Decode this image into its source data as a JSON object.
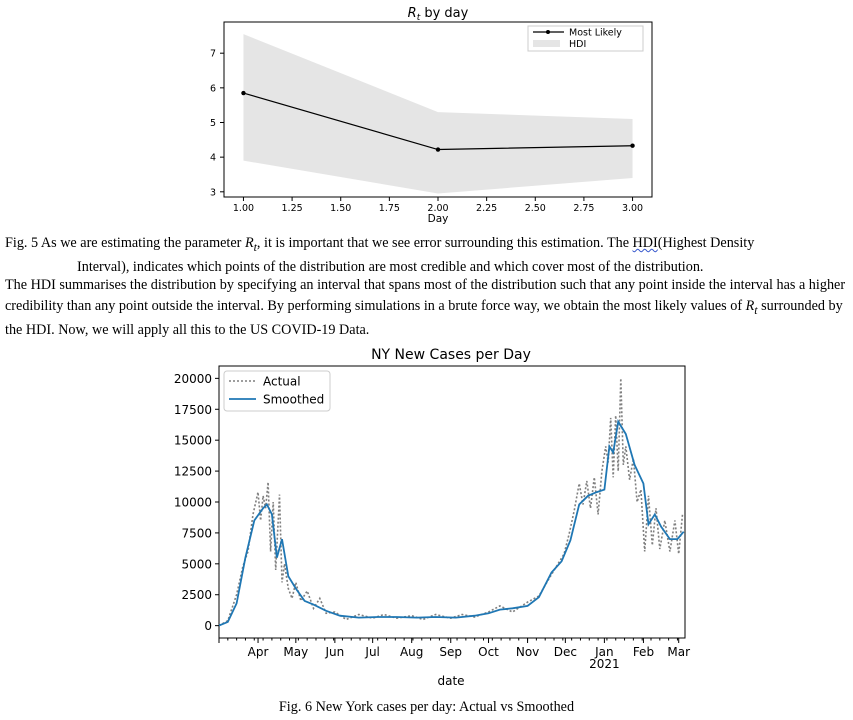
{
  "figure5": {
    "chart_data": {
      "type": "line",
      "title": "Rt by day",
      "title_main": "R",
      "title_sub": "t",
      "title_rest": " by day",
      "xlabel": "Day",
      "ylabel": "",
      "xlim": [
        0.9,
        3.1
      ],
      "ylim": [
        2.85,
        7.9
      ],
      "xticks": [
        "1.00",
        "1.25",
        "1.50",
        "1.75",
        "2.00",
        "2.25",
        "2.50",
        "2.75",
        "3.00"
      ],
      "yticks": [
        "3",
        "4",
        "5",
        "6",
        "7"
      ],
      "legend": [
        "Most Likely",
        "HDI"
      ],
      "legend_position": "upper right",
      "series": [
        {
          "name": "Most Likely",
          "x": [
            1,
            2,
            3
          ],
          "y": [
            5.85,
            4.22,
            4.33
          ],
          "color": "#000000"
        }
      ],
      "hdi": {
        "name": "HDI",
        "x": [
          1,
          2,
          3
        ],
        "low": [
          3.9,
          2.95,
          3.4
        ],
        "high": [
          7.55,
          5.3,
          5.1
        ],
        "color": "#e5e5e5"
      }
    }
  },
  "caption5": {
    "prefix": "Fig. 5 As we are estimating the parameter ",
    "sym": "R",
    "sub": "t",
    "middle": ", it is important that we see error surrounding this estimation. The ",
    "hdi_word": "HDI",
    "suffix": "(Highest Density",
    "line2": "Interval), indicates which points of the distribution are most credible and which cover most of the distribution."
  },
  "paragraph": {
    "text": "The HDI summarises the distribution by specifying an interval that spans most of the distribution such that any point inside the interval has a higher credibility than any point outside the interval. By performing simulations in a brute force way, we obtain the most likely values of ",
    "sym": "R",
    "sub": "t",
    "tail": " surrounded by the HDI. Now, we will apply all this to the US COVID-19 Data."
  },
  "figure6": {
    "chart_data": {
      "type": "line",
      "title": "NY New Cases per Day",
      "xlabel": "date",
      "ylabel": "",
      "ylim": [
        -1000,
        21000
      ],
      "xlim_days": [
        0,
        370
      ],
      "yticks": [
        "0",
        "2500",
        "5000",
        "7500",
        "10000",
        "12500",
        "15000",
        "17500",
        "20000"
      ],
      "month_labels": [
        "Apr",
        "May",
        "Jun",
        "Jul",
        "Aug",
        "Sep",
        "Oct",
        "Nov",
        "Dec",
        "Jan",
        "Feb",
        "Mar"
      ],
      "year_label": "2021",
      "legend": [
        "Actual",
        "Smoothed"
      ],
      "legend_position": "upper left",
      "series": [
        {
          "name": "Smoothed",
          "color": "#1f77b4",
          "x": [
            "2020-03-01",
            "2020-03-08",
            "2020-03-15",
            "2020-03-22",
            "2020-03-29",
            "2020-04-05",
            "2020-04-08",
            "2020-04-12",
            "2020-04-16",
            "2020-04-20",
            "2020-04-25",
            "2020-05-01",
            "2020-05-08",
            "2020-05-15",
            "2020-05-25",
            "2020-06-05",
            "2020-06-20",
            "2020-07-05",
            "2020-07-20",
            "2020-08-05",
            "2020-08-20",
            "2020-09-05",
            "2020-09-20",
            "2020-10-01",
            "2020-10-10",
            "2020-10-20",
            "2020-11-01",
            "2020-11-10",
            "2020-11-20",
            "2020-11-28",
            "2020-12-05",
            "2020-12-12",
            "2020-12-19",
            "2020-12-26",
            "2021-01-01",
            "2021-01-05",
            "2021-01-08",
            "2021-01-12",
            "2021-01-18",
            "2021-01-25",
            "2021-02-01",
            "2021-02-05",
            "2021-02-10",
            "2021-02-15",
            "2021-02-22",
            "2021-02-28",
            "2021-03-05"
          ],
          "y": [
            0,
            300,
            1800,
            5500,
            8500,
            9500,
            9800,
            9000,
            5500,
            7000,
            4000,
            3000,
            2000,
            1700,
            1200,
            800,
            650,
            700,
            700,
            650,
            700,
            650,
            800,
            1000,
            1300,
            1400,
            1600,
            2300,
            4300,
            5200,
            6900,
            9800,
            10500,
            10800,
            11000,
            14500,
            14000,
            16500,
            15500,
            13000,
            11500,
            8200,
            9000,
            8000,
            7000,
            7000,
            7600
          ]
        },
        {
          "name": "Actual",
          "color": "#7f7f7f",
          "x": [
            "2020-03-01",
            "2020-03-08",
            "2020-03-15",
            "2020-03-20",
            "2020-03-24",
            "2020-03-28",
            "2020-04-01",
            "2020-04-03",
            "2020-04-05",
            "2020-04-07",
            "2020-04-09",
            "2020-04-11",
            "2020-04-13",
            "2020-04-15",
            "2020-04-18",
            "2020-04-20",
            "2020-04-22",
            "2020-04-25",
            "2020-04-28",
            "2020-05-01",
            "2020-05-05",
            "2020-05-10",
            "2020-05-15",
            "2020-05-20",
            "2020-05-25",
            "2020-06-01",
            "2020-06-10",
            "2020-06-20",
            "2020-07-01",
            "2020-07-10",
            "2020-07-20",
            "2020-08-01",
            "2020-08-10",
            "2020-08-20",
            "2020-09-01",
            "2020-09-10",
            "2020-09-20",
            "2020-10-01",
            "2020-10-10",
            "2020-10-20",
            "2020-11-01",
            "2020-11-10",
            "2020-11-18",
            "2020-11-24",
            "2020-11-30",
            "2020-12-04",
            "2020-12-08",
            "2020-12-12",
            "2020-12-15",
            "2020-12-18",
            "2020-12-21",
            "2020-12-24",
            "2020-12-27",
            "2020-12-30",
            "2021-01-02",
            "2021-01-04",
            "2021-01-06",
            "2021-01-08",
            "2021-01-10",
            "2021-01-12",
            "2021-01-14",
            "2021-01-16",
            "2021-01-18",
            "2021-01-21",
            "2021-01-24",
            "2021-01-27",
            "2021-01-30",
            "2021-02-02",
            "2021-02-05",
            "2021-02-08",
            "2021-02-11",
            "2021-02-14",
            "2021-02-18",
            "2021-02-22",
            "2021-02-26",
            "2021-03-01",
            "2021-03-04"
          ],
          "y": [
            0,
            400,
            2500,
            4800,
            6000,
            9000,
            10800,
            8500,
            10500,
            9500,
            11600,
            6000,
            10000,
            4500,
            10600,
            3500,
            5000,
            3000,
            2200,
            3500,
            2000,
            2800,
            1400,
            2200,
            1000,
            1100,
            500,
            900,
            600,
            900,
            600,
            800,
            500,
            900,
            600,
            900,
            700,
            1100,
            1600,
            1100,
            1900,
            2400,
            3800,
            4800,
            5800,
            7400,
            9300,
            11500,
            9800,
            11700,
            9500,
            12000,
            9000,
            12500,
            14500,
            13200,
            16800,
            12000,
            17000,
            12500,
            20000,
            13000,
            14500,
            11800,
            13500,
            10000,
            11000,
            6000,
            10500,
            6500,
            9500,
            6200,
            8500,
            6000,
            8500,
            5800,
            9000
          ]
        }
      ]
    }
  },
  "caption6": "Fig. 6 New York cases per day: Actual vs Smoothed"
}
